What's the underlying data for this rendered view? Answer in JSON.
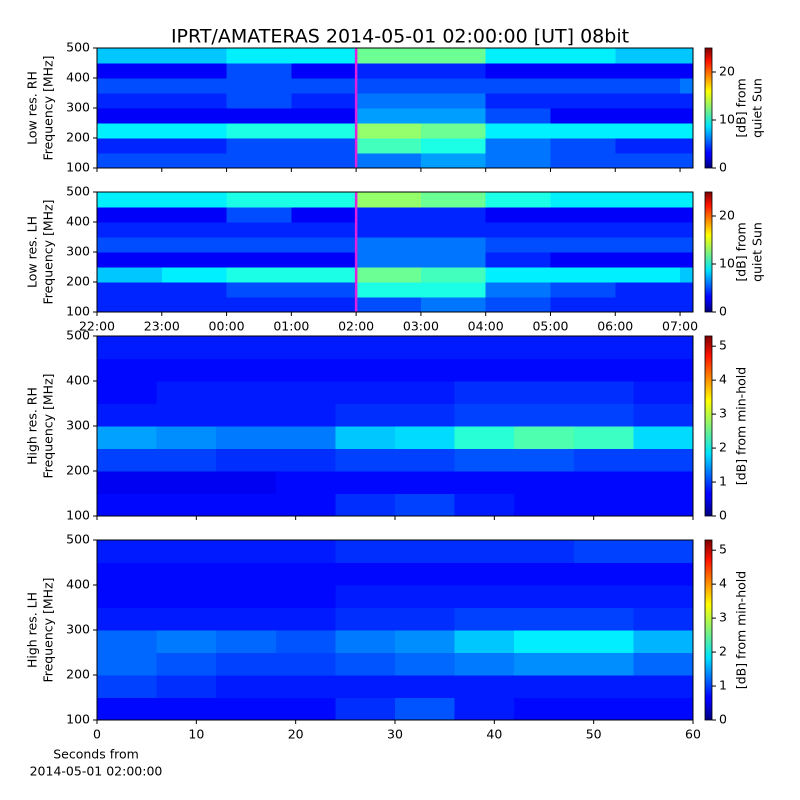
{
  "chart_data": [
    {
      "type": "heatmap",
      "title": "IPRT/AMATERAS 2014-05-01 02:00:00 [UT]   08bit",
      "ylabel": [
        "Low res. RH",
        "Frequency [MHz]"
      ],
      "xlim": [
        0,
        9.2
      ],
      "ylim": [
        100,
        500
      ],
      "xticks": [
        0,
        1,
        2,
        3,
        4,
        5,
        6,
        7,
        8,
        9
      ],
      "show_xticklabels": false,
      "yticks": [
        100,
        200,
        300,
        400,
        500
      ],
      "x_edges": [
        0,
        1,
        2,
        3,
        4,
        5,
        6,
        7,
        8,
        9,
        9.2
      ],
      "y_edges": [
        100,
        150,
        200,
        250,
        300,
        350,
        400,
        450,
        500
      ],
      "z": [
        [
          5,
          5,
          5,
          5,
          6,
          7,
          6,
          5,
          5,
          5
        ],
        [
          4,
          4,
          5,
          5,
          11,
          10,
          6,
          5,
          4,
          4
        ],
        [
          9,
          9,
          10,
          10,
          13,
          12,
          9,
          9,
          9,
          9
        ],
        [
          3,
          3,
          3,
          3,
          7,
          7,
          5,
          3,
          3,
          3
        ],
        [
          4,
          4,
          5,
          4,
          6,
          6,
          4,
          4,
          4,
          4
        ],
        [
          5,
          5,
          5,
          5,
          5,
          5,
          5,
          5,
          5,
          6
        ],
        [
          3,
          3,
          5,
          3,
          4,
          4,
          3,
          3,
          3,
          3
        ],
        [
          8,
          8,
          9,
          9,
          12,
          12,
          9,
          9,
          8,
          8
        ]
      ],
      "vlines": [
        {
          "x": 4,
          "color": "#e020e0"
        }
      ],
      "colorbar": {
        "label": [
          "[dB] from",
          "quiet Sun"
        ],
        "zlim": [
          0,
          25
        ],
        "ticks": [
          0,
          10,
          20
        ]
      }
    },
    {
      "type": "heatmap",
      "ylabel": [
        "Low res. LH",
        "Frequency [MHz]"
      ],
      "xlim": [
        0,
        9.2
      ],
      "ylim": [
        100,
        500
      ],
      "xticks": [
        {
          "value": 0,
          "label": "22:00"
        },
        {
          "value": 1,
          "label": "23:00"
        },
        {
          "value": 2,
          "label": "00:00"
        },
        {
          "value": 3,
          "label": "01:00"
        },
        {
          "value": 4,
          "label": "02:00"
        },
        {
          "value": 5,
          "label": "03:00"
        },
        {
          "value": 6,
          "label": "04:00"
        },
        {
          "value": 7,
          "label": "05:00"
        },
        {
          "value": 8,
          "label": "06:00"
        },
        {
          "value": 9,
          "label": "07:00"
        }
      ],
      "show_xticklabels": true,
      "yticks": [
        100,
        200,
        300,
        400,
        500
      ],
      "x_edges": [
        0,
        1,
        2,
        3,
        4,
        5,
        6,
        7,
        8,
        9,
        9.2
      ],
      "y_edges": [
        100,
        150,
        200,
        250,
        300,
        350,
        400,
        450,
        500
      ],
      "z": [
        [
          4,
          4,
          4,
          4,
          5,
          6,
          5,
          4,
          4,
          4
        ],
        [
          4,
          4,
          5,
          5,
          10,
          10,
          6,
          5,
          4,
          4
        ],
        [
          8,
          9,
          10,
          10,
          12,
          11,
          9,
          9,
          9,
          8
        ],
        [
          3,
          3,
          3,
          3,
          6,
          6,
          4,
          3,
          3,
          3
        ],
        [
          5,
          5,
          5,
          5,
          6,
          6,
          5,
          5,
          5,
          5
        ],
        [
          4,
          4,
          4,
          4,
          4,
          4,
          4,
          4,
          4,
          4
        ],
        [
          3,
          3,
          5,
          3,
          4,
          4,
          3,
          3,
          3,
          3
        ],
        [
          9,
          9,
          10,
          10,
          13,
          12,
          10,
          9,
          9,
          9
        ]
      ],
      "vlines": [
        {
          "x": 4,
          "color": "#e020e0"
        }
      ],
      "colorbar": {
        "label": [
          "[dB] from",
          "quiet Sun"
        ],
        "zlim": [
          0,
          25
        ],
        "ticks": [
          0,
          10,
          20
        ]
      }
    },
    {
      "type": "heatmap",
      "ylabel": [
        "High res. RH",
        "Frequency [MHz]"
      ],
      "xlim": [
        0,
        60
      ],
      "ylim": [
        100,
        500
      ],
      "xticks": [
        0,
        10,
        20,
        30,
        40,
        50,
        60
      ],
      "show_xticklabels": false,
      "yticks": [
        100,
        200,
        300,
        400,
        500
      ],
      "x_edges": [
        0,
        6,
        12,
        18,
        24,
        30,
        36,
        42,
        48,
        54,
        60
      ],
      "y_edges": [
        100,
        150,
        200,
        250,
        300,
        350,
        400,
        450,
        500
      ],
      "z": [
        [
          0.7,
          0.7,
          0.7,
          0.7,
          0.9,
          1.0,
          0.8,
          0.7,
          0.7,
          0.7
        ],
        [
          0.6,
          0.6,
          0.6,
          0.7,
          0.7,
          0.7,
          0.7,
          0.7,
          0.7,
          0.7
        ],
        [
          1.0,
          1.0,
          0.9,
          0.9,
          1.0,
          1.0,
          1.1,
          1.1,
          1.0,
          1.0
        ],
        [
          1.5,
          1.4,
          1.3,
          1.3,
          1.7,
          1.8,
          2.2,
          2.4,
          2.3,
          1.8
        ],
        [
          0.8,
          0.8,
          0.8,
          0.8,
          0.9,
          0.9,
          1.0,
          1.0,
          1.0,
          0.9
        ],
        [
          0.7,
          0.8,
          0.8,
          0.8,
          0.8,
          0.8,
          0.9,
          0.9,
          0.9,
          0.8
        ],
        [
          0.7,
          0.7,
          0.7,
          0.7,
          0.7,
          0.7,
          0.7,
          0.7,
          0.7,
          0.7
        ],
        [
          0.8,
          0.8,
          0.8,
          0.8,
          0.8,
          0.8,
          0.8,
          0.8,
          0.8,
          0.8
        ]
      ],
      "colorbar": {
        "label": [
          "[dB] from min-hold"
        ],
        "zlim": [
          0,
          5.3
        ],
        "ticks": [
          0,
          1,
          2,
          3,
          4,
          5
        ]
      }
    },
    {
      "type": "heatmap",
      "ylabel": [
        "High res. LH",
        "Frequency [MHz]"
      ],
      "xlim": [
        0,
        60
      ],
      "ylim": [
        100,
        500
      ],
      "xticks": [
        0,
        10,
        20,
        30,
        40,
        50,
        60
      ],
      "show_xticklabels": true,
      "xlabel": [
        "Seconds from",
        "2014-05-01 02:00:00"
      ],
      "yticks": [
        100,
        200,
        300,
        400,
        500
      ],
      "x_edges": [
        0,
        6,
        12,
        18,
        24,
        30,
        36,
        42,
        48,
        54,
        60
      ],
      "y_edges": [
        100,
        150,
        200,
        250,
        300,
        350,
        400,
        450,
        500
      ],
      "z": [
        [
          0.7,
          0.7,
          0.7,
          0.7,
          0.9,
          1.1,
          0.8,
          0.7,
          0.7,
          0.7
        ],
        [
          1.0,
          0.9,
          0.8,
          0.8,
          0.8,
          0.8,
          0.8,
          0.8,
          0.8,
          0.8
        ],
        [
          1.2,
          1.1,
          1.0,
          1.0,
          1.1,
          1.2,
          1.3,
          1.4,
          1.4,
          1.2
        ],
        [
          1.2,
          1.3,
          1.2,
          1.1,
          1.3,
          1.4,
          1.7,
          1.9,
          1.9,
          1.6
        ],
        [
          0.8,
          0.8,
          0.8,
          0.8,
          0.9,
          0.9,
          1.0,
          1.0,
          1.0,
          0.9
        ],
        [
          0.7,
          0.7,
          0.7,
          0.7,
          0.8,
          0.8,
          0.8,
          0.8,
          0.8,
          0.8
        ],
        [
          0.7,
          0.7,
          0.7,
          0.7,
          0.7,
          0.7,
          0.7,
          0.7,
          0.7,
          0.7
        ],
        [
          0.8,
          0.8,
          0.8,
          0.8,
          0.9,
          0.9,
          0.9,
          0.9,
          1.0,
          1.0
        ]
      ],
      "colorbar": {
        "label": [
          "[dB] from min-hold"
        ],
        "zlim": [
          0,
          5.3
        ],
        "ticks": [
          0,
          1,
          2,
          3,
          4,
          5
        ]
      }
    }
  ]
}
